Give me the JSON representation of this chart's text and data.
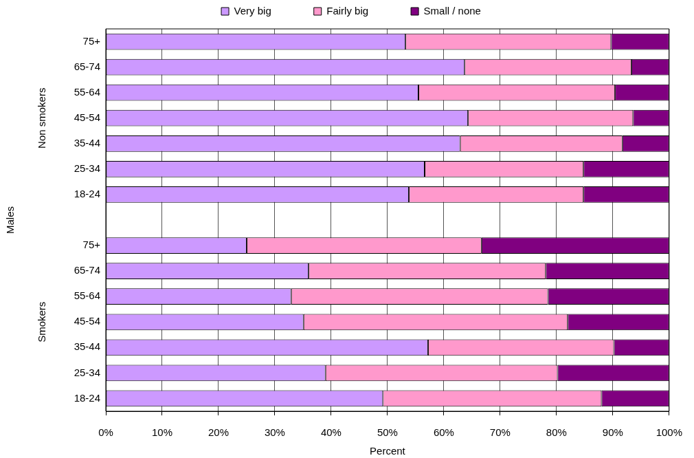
{
  "chart_data": {
    "type": "bar",
    "orientation": "horizontal",
    "stacked": true,
    "categories": [
      "75+",
      "65-74",
      "55-64",
      "45-54",
      "35-44",
      "25-34",
      "18-24",
      null,
      "75+",
      "65-74",
      "55-64",
      "45-54",
      "35-44",
      "25-34",
      "18-24"
    ],
    "series": [
      {
        "name": "Very big",
        "color": "#cc99ff",
        "values": [
          53.2,
          63.7,
          55.5,
          64.3,
          62.9,
          56.6,
          53.8,
          null,
          25.0,
          36.0,
          32.9,
          35.1,
          57.2,
          39.0,
          49.2
        ]
      },
      {
        "name": "Fairly big",
        "color": "#ff99cc",
        "values": [
          36.5,
          29.6,
          34.9,
          29.3,
          28.8,
          28.2,
          31.0,
          null,
          41.7,
          42.1,
          45.6,
          46.9,
          33.0,
          41.2,
          38.8
        ]
      },
      {
        "name": "Small / none",
        "color": "#800080",
        "values": [
          10.3,
          6.7,
          9.6,
          6.4,
          8.3,
          15.2,
          15.2,
          null,
          33.3,
          21.9,
          21.5,
          18.0,
          9.8,
          19.8,
          12.0
        ]
      }
    ],
    "xlim": [
      0,
      100
    ],
    "xticks": [
      {
        "value": 0,
        "label": "0%"
      },
      {
        "value": 10,
        "label": "10%"
      },
      {
        "value": 20,
        "label": "20%"
      },
      {
        "value": 30,
        "label": "30%"
      },
      {
        "value": 40,
        "label": "40%"
      },
      {
        "value": 50,
        "label": "50%"
      },
      {
        "value": 60,
        "label": "60%"
      },
      {
        "value": 70,
        "label": "70%"
      },
      {
        "value": 80,
        "label": "80%"
      },
      {
        "value": 90,
        "label": "90%"
      },
      {
        "value": 100,
        "label": "100%"
      }
    ],
    "xlabel": "Percent",
    "annotations": [
      "Males",
      "Non smokers",
      "Smokers"
    ],
    "grid": "x",
    "legend": "top"
  }
}
